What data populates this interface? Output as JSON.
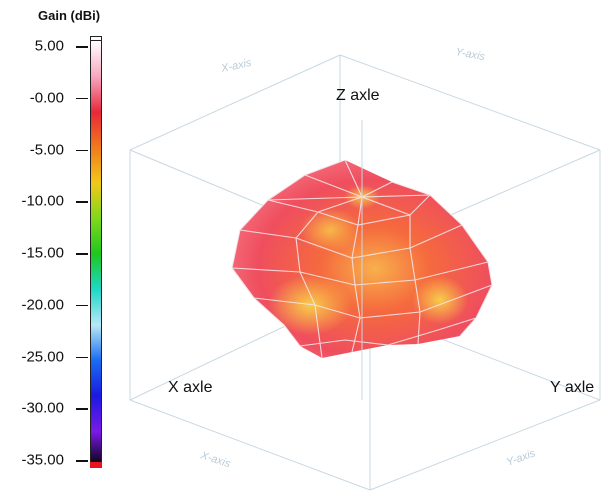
{
  "chart_data": {
    "type": "heatmap",
    "subtype": "3d-radiation-pattern",
    "colorbar": {
      "title": "Gain (dBi)",
      "ticks": [
        "5.00",
        "-0.00",
        "-5.00",
        "-10.00",
        "-15.00",
        "-20.00",
        "-25.00",
        "-30.00",
        "-35.00"
      ],
      "tick_values": [
        5,
        0,
        -5,
        -10,
        -15,
        -20,
        -25,
        -30,
        -35
      ],
      "range": [
        -35,
        5
      ],
      "colors": [
        "#ffffff",
        "#f7a8c0",
        "#e8283c",
        "#f07a1c",
        "#f2c81a",
        "#7fd81c",
        "#1ec81e",
        "#1ed8c8",
        "#b8e8f8",
        "#1a6cf0",
        "#1a1ae0",
        "#7a1ae8",
        "#000000",
        "#e8141c"
      ]
    },
    "axes": {
      "x": "X axle",
      "y": "Y axle",
      "z": "Z axle"
    },
    "faint_labels": {
      "back_left": "X-axis",
      "back_right": "Y-axis",
      "front_left": "X-axis",
      "front_right": "Y-axis"
    },
    "surface": {
      "gain_range_dbi": [
        -2,
        3
      ],
      "dominant_colors": [
        "#f06a72",
        "#f4584a",
        "#f79a4a",
        "#f8d24a"
      ]
    }
  }
}
